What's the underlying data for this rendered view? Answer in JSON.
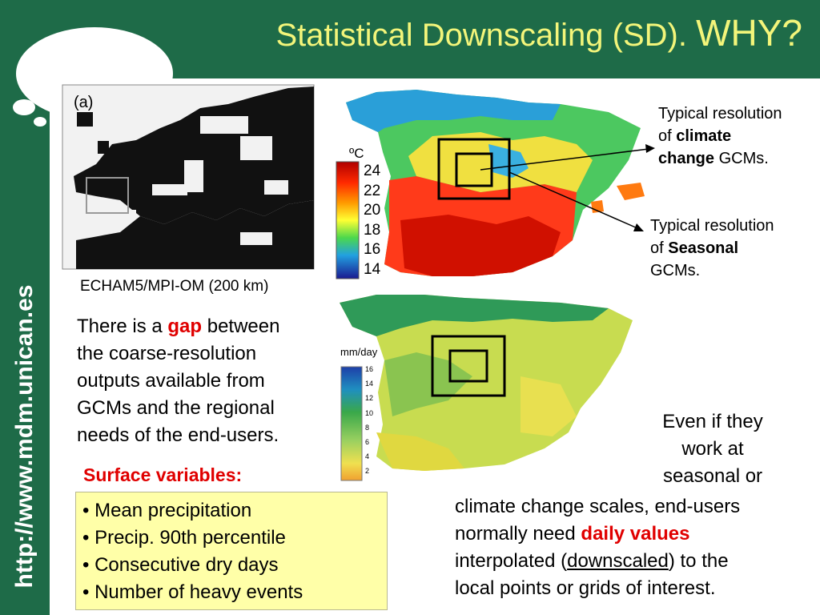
{
  "title": {
    "main": "Statistical Downscaling (SD).",
    "why": "WHY?"
  },
  "sidebar": {
    "url": "http://www.mdm.unican.es"
  },
  "map_a": {
    "panel_label": "(a)",
    "caption": "ECHAM5/MPI-OM (200 km)"
  },
  "temp_legend": {
    "unit": "ºC",
    "ticks": [
      "24",
      "22",
      "20",
      "18",
      "16",
      "14"
    ]
  },
  "precip_legend": {
    "unit": "mm/day",
    "ticks": [
      "16",
      "14",
      "12",
      "10",
      "8",
      "6",
      "4",
      "2"
    ]
  },
  "annotations": {
    "climate": {
      "line1": "Typical resolution",
      "of": "of ",
      "bold1": "climate",
      "bold2": "change",
      "rest": " GCMs."
    },
    "seasonal": {
      "line1": "Typical resolution",
      "of": "of ",
      "bold": "Seasonal",
      "line3": "GCMs."
    }
  },
  "gap_text": {
    "before": "There is a ",
    "gap": "gap",
    "after": " between",
    "line2": "the coarse-resolution",
    "line3": "outputs available from",
    "line4": "GCMs and the regional",
    "line5": "needs of the end-users."
  },
  "surface": {
    "heading": "Surface variables:",
    "items": [
      "• Mean precipitation",
      "• Precip. 90th percentile",
      "• Consecutive dry days",
      "• Number of heavy events"
    ]
  },
  "even_text": {
    "l1": "Even if they",
    "l2": "work at",
    "l3": "seasonal or",
    "l4": "climate change scales, end-users",
    "l5_before": "normally need ",
    "l5_red": "daily values",
    "l6_before": "interpolated (",
    "l6_u": "downscaled",
    "l6_after": ") to the",
    "l7": "local points or grids of interest."
  },
  "colors": {
    "green": "#1e6b48",
    "title_yellow": "#f3f57a",
    "highlight_red": "#e00000",
    "box_yellow": "#ffffa8"
  }
}
